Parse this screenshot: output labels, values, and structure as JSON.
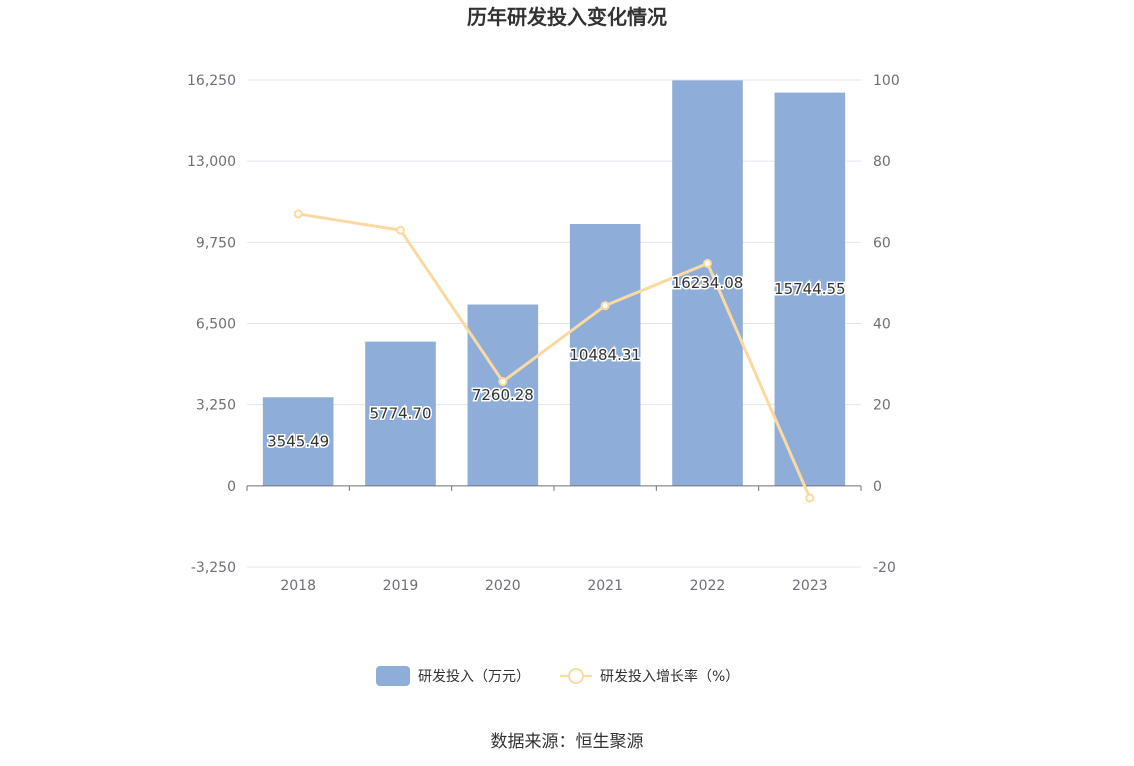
{
  "chart_data": {
    "type": "bar",
    "title": "历年研发投入变化情况",
    "categories": [
      "2018",
      "2019",
      "2020",
      "2021",
      "2022",
      "2023"
    ],
    "series": [
      {
        "name": "研发投入（万元）",
        "type": "bar",
        "axis": "left",
        "color": "#8eaed9",
        "values": [
          3545.49,
          5774.7,
          7260.28,
          10484.31,
          16234.08,
          15744.55
        ],
        "labels": [
          "3545.49",
          "5774.70",
          "7260.28",
          "10484.31",
          "16234.08",
          "15744.55"
        ]
      },
      {
        "name": "研发投入增长率（%）",
        "type": "line",
        "axis": "right",
        "color": "#fcd9a0",
        "values": [
          67.0,
          63.0,
          25.7,
          44.4,
          54.8,
          -3.0
        ]
      }
    ],
    "left_axis": {
      "min": -3250,
      "max": 16250,
      "ticks": [
        -3250,
        0,
        3250,
        6500,
        9750,
        13000,
        16250
      ],
      "tick_labels": [
        "-3,250",
        "0",
        "3,250",
        "6,500",
        "9,750",
        "13,000",
        "16,250"
      ]
    },
    "right_axis": {
      "min": -20,
      "max": 100,
      "ticks": [
        -20,
        0,
        20,
        40,
        60,
        80,
        100
      ],
      "tick_labels": [
        "-20",
        "0",
        "20",
        "40",
        "60",
        "80",
        "100"
      ]
    },
    "grid": true,
    "legend_position": "bottom-center"
  },
  "source": "数据来源：恒生聚源",
  "colors": {
    "gridline": "#e0e6f1",
    "axis": "#6e7079"
  }
}
